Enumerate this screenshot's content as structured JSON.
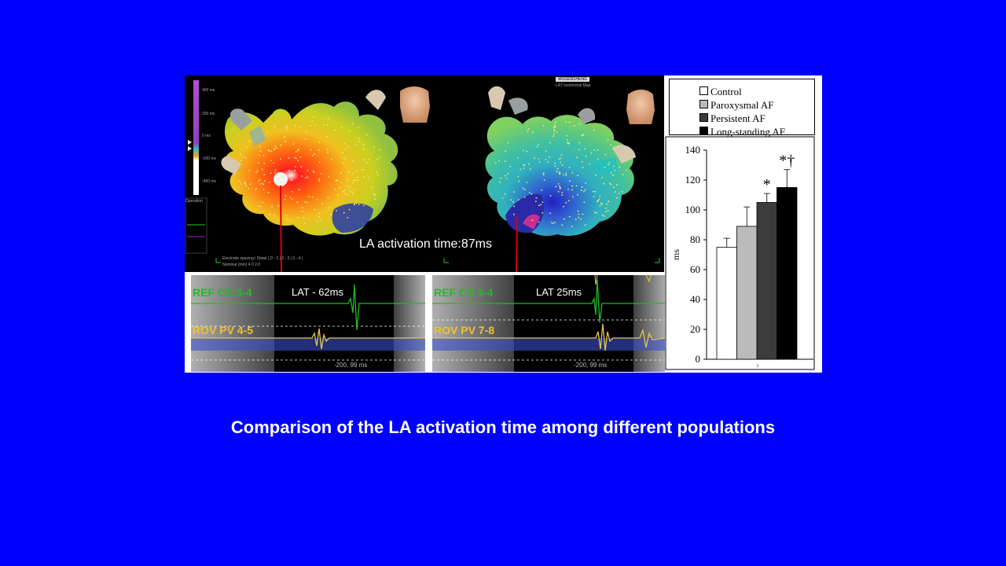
{
  "map": {
    "left_view_label": "LA activation time:87ms",
    "patient_name": "WUGENSHENG",
    "map_type": "LAT Isochronal Map",
    "scale_labels": [
      "400 ms",
      "200 ms",
      "0 ms",
      "-200 ms",
      "-400 ms"
    ],
    "electrode_spacing": "Electrode spacing | Distal | D - 2 | 2 - 3 | 3 - 4 |",
    "electrode_nominal": "Nominal (mm)   4.0   2.0",
    "side_panel_label": "Operation"
  },
  "ecg_left": {
    "ref_label": "REF CS 3-4",
    "rov_label": "ROV PV 4-5",
    "lat_label": "LAT - 62ms",
    "footer": "-200, 99 ms"
  },
  "ecg_right": {
    "ref_label": "REF CS 3-4",
    "rov_label": "ROV PV 7-8",
    "lat_label": "LAT  25ms",
    "footer": "-200, 99 ms"
  },
  "caption": "Comparison of the LA activation time among different populations",
  "colors": {
    "background": "#0000ff",
    "ref_trace": "#22bb22",
    "rov_trace": "#e6c84a",
    "rov_label": "#f0c030"
  },
  "chart_data": {
    "type": "bar",
    "categories": [
      "Control",
      "Paroxysmal AF",
      "Persistent AF",
      "Long-standing AF"
    ],
    "values": [
      75,
      89,
      105,
      115
    ],
    "errors": [
      6,
      13,
      6,
      12
    ],
    "colors": [
      "#ffffff",
      "#bbbbbb",
      "#3c3c3c",
      "#000000"
    ],
    "annotations": [
      "",
      "",
      "*",
      "*†"
    ],
    "ylabel": "ms",
    "ylim": [
      0,
      140
    ],
    "yticks": [
      0,
      20,
      40,
      60,
      80,
      100,
      120,
      140
    ],
    "xtick_label": "1",
    "legend": [
      "Control",
      "Paroxysmal AF",
      "Persistent AF",
      "Long-standing AF"
    ],
    "legend_position": "top"
  }
}
